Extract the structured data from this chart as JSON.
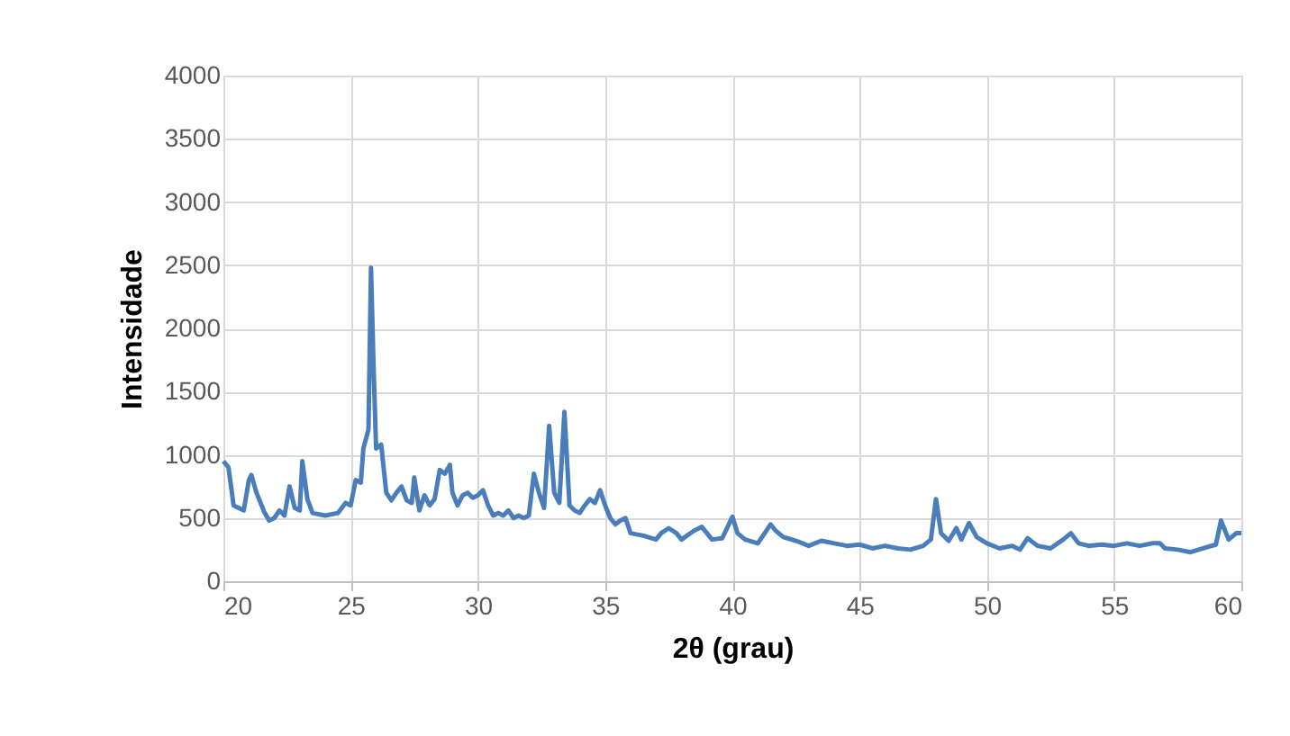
{
  "chart_data": {
    "type": "line",
    "xlabel": "2θ (grau)",
    "ylabel": "Intensidade",
    "xlim": [
      20,
      60
    ],
    "xticks": [
      20,
      25,
      30,
      35,
      40,
      45,
      50,
      55,
      60
    ],
    "ylim": [
      0,
      4000
    ],
    "yticks": [
      0,
      500,
      1000,
      1500,
      2000,
      2500,
      3000,
      3500,
      4000
    ],
    "grid": true,
    "marker": "none",
    "line_style": "solid",
    "series": [
      {
        "color": "#4a7ebb",
        "x": [
          20.0,
          20.2,
          20.4,
          20.6,
          20.8,
          21.0,
          21.1,
          21.3,
          21.6,
          21.8,
          22.0,
          22.2,
          22.4,
          22.6,
          22.8,
          23.0,
          23.1,
          23.3,
          23.5,
          24.0,
          24.5,
          24.8,
          25.0,
          25.2,
          25.4,
          25.5,
          25.7,
          25.8,
          25.9,
          26.0,
          26.2,
          26.4,
          26.6,
          26.8,
          27.0,
          27.2,
          27.4,
          27.5,
          27.7,
          27.9,
          28.1,
          28.3,
          28.5,
          28.7,
          28.9,
          29.0,
          29.2,
          29.4,
          29.6,
          29.8,
          30.0,
          30.2,
          30.4,
          30.6,
          30.8,
          31.0,
          31.2,
          31.4,
          31.6,
          31.8,
          32.0,
          32.2,
          32.4,
          32.6,
          32.8,
          33.0,
          33.2,
          33.4,
          33.6,
          33.8,
          34.0,
          34.2,
          34.4,
          34.6,
          34.8,
          35.0,
          35.2,
          35.4,
          35.6,
          35.8,
          36.0,
          36.5,
          37.0,
          37.2,
          37.5,
          37.8,
          38.0,
          38.5,
          38.8,
          39.2,
          39.6,
          40.0,
          40.2,
          40.5,
          41.0,
          41.5,
          41.7,
          42.0,
          42.5,
          43.0,
          43.5,
          44.0,
          44.5,
          45.0,
          45.5,
          46.0,
          46.5,
          47.0,
          47.5,
          47.8,
          48.0,
          48.2,
          48.5,
          48.8,
          49.0,
          49.3,
          49.6,
          50.0,
          50.5,
          51.0,
          51.3,
          51.6,
          52.0,
          52.5,
          53.0,
          53.3,
          53.6,
          54.0,
          54.5,
          55.0,
          55.5,
          56.0,
          56.5,
          56.8,
          57.0,
          57.5,
          58.0,
          58.5,
          59.0,
          59.2,
          59.5,
          59.8,
          60.0
        ],
        "values": [
          950,
          900,
          600,
          580,
          560,
          800,
          840,
          700,
          550,
          480,
          500,
          560,
          520,
          750,
          580,
          560,
          950,
          650,
          540,
          520,
          540,
          620,
          600,
          800,
          780,
          1050,
          1200,
          2480,
          1700,
          1050,
          1080,
          700,
          640,
          700,
          750,
          640,
          620,
          820,
          560,
          680,
          600,
          650,
          880,
          850,
          920,
          700,
          600,
          680,
          700,
          660,
          680,
          720,
          600,
          520,
          540,
          520,
          560,
          500,
          520,
          500,
          520,
          850,
          700,
          580,
          1230,
          700,
          620,
          1340,
          600,
          560,
          540,
          600,
          650,
          620,
          720,
          600,
          500,
          450,
          480,
          500,
          380,
          360,
          330,
          380,
          420,
          380,
          330,
          400,
          430,
          330,
          340,
          510,
          380,
          330,
          300,
          450,
          400,
          350,
          320,
          280,
          320,
          300,
          280,
          290,
          260,
          280,
          260,
          250,
          280,
          330,
          650,
          380,
          320,
          420,
          330,
          460,
          350,
          300,
          260,
          280,
          250,
          340,
          280,
          260,
          330,
          380,
          300,
          280,
          290,
          280,
          300,
          280,
          300,
          300,
          260,
          250,
          230,
          260,
          290,
          480,
          330,
          380,
          380
        ]
      }
    ]
  }
}
